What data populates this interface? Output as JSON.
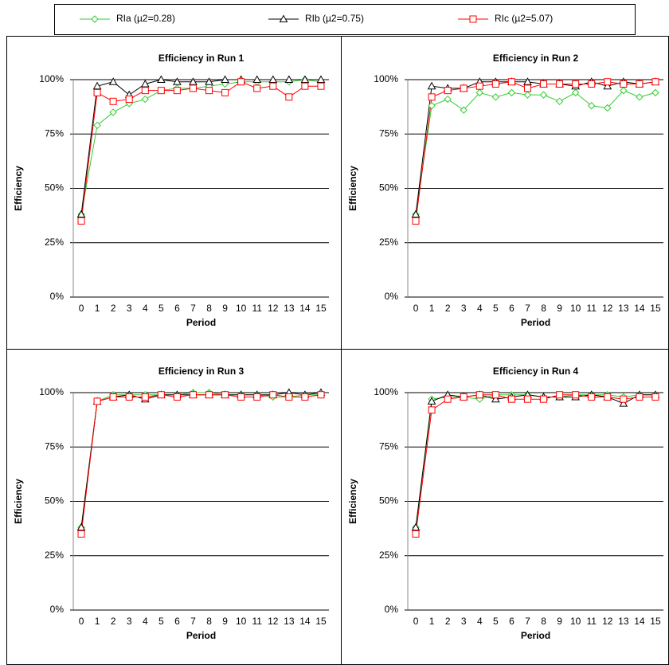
{
  "chart_data": [
    {
      "type": "line",
      "title": "Efficiency in Run 1",
      "x_label": "Period",
      "y_label": "Efficiency",
      "categories": [
        "0",
        "1",
        "2",
        "3",
        "4",
        "5",
        "6",
        "7",
        "8",
        "9",
        "10",
        "11",
        "12",
        "13",
        "14",
        "15"
      ],
      "ylim": [
        0,
        100
      ],
      "yticks": [
        {
          "value": 0,
          "label": "0%"
        },
        {
          "value": 25,
          "label": "25%"
        },
        {
          "value": 50,
          "label": "50%"
        },
        {
          "value": 75,
          "label": "75%"
        },
        {
          "value": 100,
          "label": "100%"
        }
      ],
      "grid": true,
      "series": [
        {
          "name": "RIa (µ2=0.28)",
          "color": "#33cc33",
          "marker": "diamond",
          "values": [
            38,
            79,
            85,
            89,
            91,
            95,
            96,
            96,
            97,
            98,
            99,
            99,
            99,
            99,
            100,
            99
          ]
        },
        {
          "name": "RIb (µ2=0.75)",
          "color": "#000000",
          "marker": "triangle",
          "values": [
            38,
            97,
            99,
            93,
            98,
            100,
            99,
            99,
            99,
            100,
            100,
            100,
            100,
            100,
            100,
            100
          ]
        },
        {
          "name": "RIc (µ2=5.07)",
          "color": "#ff0000",
          "marker": "square",
          "values": [
            35,
            94,
            90,
            91,
            95,
            95,
            95,
            96,
            95,
            94,
            99,
            96,
            97,
            92,
            97,
            97
          ]
        }
      ]
    },
    {
      "type": "line",
      "title": "Efficiency in Run 2",
      "x_label": "Period",
      "y_label": "Efficiency",
      "categories": [
        "0",
        "1",
        "2",
        "3",
        "4",
        "5",
        "6",
        "7",
        "8",
        "9",
        "10",
        "11",
        "12",
        "13",
        "14",
        "15"
      ],
      "ylim": [
        0,
        100
      ],
      "yticks": [
        {
          "value": 0,
          "label": "0%"
        },
        {
          "value": 25,
          "label": "25%"
        },
        {
          "value": 50,
          "label": "50%"
        },
        {
          "value": 75,
          "label": "75%"
        },
        {
          "value": 100,
          "label": "100%"
        }
      ],
      "grid": true,
      "series": [
        {
          "color": "#33cc33",
          "marker": "diamond",
          "values": [
            38,
            88,
            91,
            86,
            94,
            92,
            94,
            93,
            93,
            90,
            94,
            88,
            87,
            95,
            92,
            94
          ]
        },
        {
          "color": "#000000",
          "marker": "triangle",
          "values": [
            38,
            97,
            96,
            96,
            99,
            99,
            99,
            99,
            98,
            98,
            97,
            99,
            97,
            99,
            98,
            99
          ]
        },
        {
          "color": "#ff0000",
          "marker": "square",
          "values": [
            35,
            92,
            95,
            96,
            97,
            98,
            99,
            96,
            98,
            98,
            98,
            98,
            99,
            98,
            98,
            99
          ]
        }
      ]
    },
    {
      "type": "line",
      "title": "Efficiency in Run 3",
      "x_label": "Period",
      "y_label": "Efficiency",
      "categories": [
        "0",
        "1",
        "2",
        "3",
        "4",
        "5",
        "6",
        "7",
        "8",
        "9",
        "10",
        "11",
        "12",
        "13",
        "14",
        "15"
      ],
      "ylim": [
        0,
        100
      ],
      "yticks": [
        {
          "value": 0,
          "label": "0%"
        },
        {
          "value": 25,
          "label": "25%"
        },
        {
          "value": 50,
          "label": "50%"
        },
        {
          "value": 75,
          "label": "75%"
        },
        {
          "value": 100,
          "label": "100%"
        }
      ],
      "grid": true,
      "series": [
        {
          "color": "#33cc33",
          "marker": "diamond",
          "values": [
            38,
            96,
            99,
            99,
            99,
            99,
            99,
            100,
            100,
            99,
            99,
            99,
            98,
            98,
            99,
            99
          ]
        },
        {
          "color": "#000000",
          "marker": "triangle",
          "values": [
            38,
            96,
            98,
            99,
            97,
            99,
            99,
            99,
            99,
            99,
            99,
            99,
            99,
            100,
            99,
            100
          ]
        },
        {
          "color": "#ff0000",
          "marker": "square",
          "values": [
            35,
            96,
            98,
            98,
            98,
            99,
            98,
            99,
            99,
            99,
            98,
            98,
            99,
            98,
            98,
            99
          ]
        }
      ]
    },
    {
      "type": "line",
      "title": "Efficiency in Run 4",
      "x_label": "Period",
      "y_label": "Efficiency",
      "categories": [
        "0",
        "1",
        "2",
        "3",
        "4",
        "5",
        "6",
        "7",
        "8",
        "9",
        "10",
        "11",
        "12",
        "13",
        "14",
        "15"
      ],
      "ylim": [
        0,
        100
      ],
      "yticks": [
        {
          "value": 0,
          "label": "0%"
        },
        {
          "value": 25,
          "label": "25%"
        },
        {
          "value": 50,
          "label": "50%"
        },
        {
          "value": 75,
          "label": "75%"
        },
        {
          "value": 100,
          "label": "100%"
        }
      ],
      "grid": true,
      "series": [
        {
          "color": "#33cc33",
          "marker": "diamond",
          "values": [
            38,
            97,
            98,
            98,
            97,
            99,
            99,
            99,
            98,
            98,
            99,
            99,
            99,
            98,
            99,
            99
          ]
        },
        {
          "color": "#000000",
          "marker": "triangle",
          "values": [
            38,
            96,
            99,
            98,
            99,
            97,
            98,
            99,
            98,
            98,
            98,
            99,
            98,
            95,
            99,
            99
          ]
        },
        {
          "color": "#ff0000",
          "marker": "square",
          "values": [
            35,
            92,
            97,
            98,
            99,
            99,
            97,
            97,
            97,
            99,
            99,
            98,
            98,
            97,
            98,
            98
          ]
        }
      ]
    }
  ]
}
